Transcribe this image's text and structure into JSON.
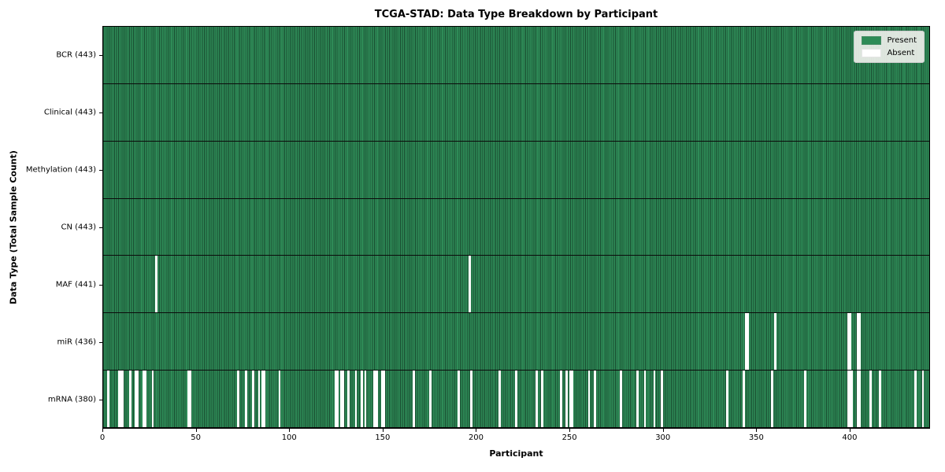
{
  "title": "TCGA-STAD: Data Type Breakdown by Participant",
  "x_axis": {
    "label": "Participant",
    "tick_labels": [
      "0",
      "50",
      "100",
      "150",
      "200",
      "250",
      "300",
      "350",
      "400"
    ]
  },
  "y_axis": {
    "label": "Data Type (Total Sample Count)"
  },
  "legend": {
    "items": [
      {
        "label": "Present",
        "color": "#2e8b57"
      },
      {
        "label": "Absent",
        "color": "#ffffff"
      }
    ]
  },
  "chart_data": {
    "type": "heatmap",
    "title": "TCGA-STAD: Data Type Breakdown by Participant",
    "xlabel": "Participant",
    "ylabel": "Data Type (Total Sample Count)",
    "n_participants": 443,
    "x_ticks": [
      0,
      50,
      100,
      150,
      200,
      250,
      300,
      350,
      400
    ],
    "xlim": [
      0,
      443
    ],
    "grid": false,
    "legend_position": "upper right",
    "colors": {
      "present": "#2e8b57",
      "absent": "#ffffff",
      "cell_edge": "rgba(0,0,0,0.45)",
      "row_divider": "#0b0b0b"
    },
    "rows": [
      {
        "data_type": "BCR",
        "label": "BCR (443)",
        "present_count": 443,
        "absent_count": 0,
        "absent_participants": []
      },
      {
        "data_type": "Clinical",
        "label": "Clinical (443)",
        "present_count": 443,
        "absent_count": 0,
        "absent_participants": []
      },
      {
        "data_type": "Methylation",
        "label": "Methylation (443)",
        "present_count": 443,
        "absent_count": 0,
        "absent_participants": []
      },
      {
        "data_type": "CN",
        "label": "CN (443)",
        "present_count": 443,
        "absent_count": 0,
        "absent_participants": []
      },
      {
        "data_type": "MAF",
        "label": "MAF (441)",
        "present_count": 441,
        "absent_count": 2,
        "absent_participants": [
          28,
          196
        ]
      },
      {
        "data_type": "miR",
        "label": "miR (436)",
        "present_count": 436,
        "absent_count": 7,
        "absent_participants": [
          344,
          345,
          360,
          399,
          400,
          404,
          405
        ]
      },
      {
        "data_type": "mRNA",
        "label": "mRNA (380)",
        "present_count": 380,
        "absent_count": 63,
        "absent_participants": [
          2,
          8,
          9,
          10,
          14,
          17,
          18,
          21,
          22,
          26,
          45,
          46,
          72,
          76,
          80,
          83,
          85,
          86,
          94,
          124,
          125,
          127,
          128,
          131,
          135,
          138,
          140,
          145,
          146,
          149,
          150,
          166,
          175,
          190,
          197,
          212,
          221,
          232,
          235,
          245,
          248,
          250,
          251,
          260,
          263,
          277,
          286,
          290,
          295,
          299,
          334,
          343,
          358,
          376,
          399,
          400,
          401,
          404,
          405,
          411,
          416,
          435,
          439
        ]
      }
    ]
  }
}
